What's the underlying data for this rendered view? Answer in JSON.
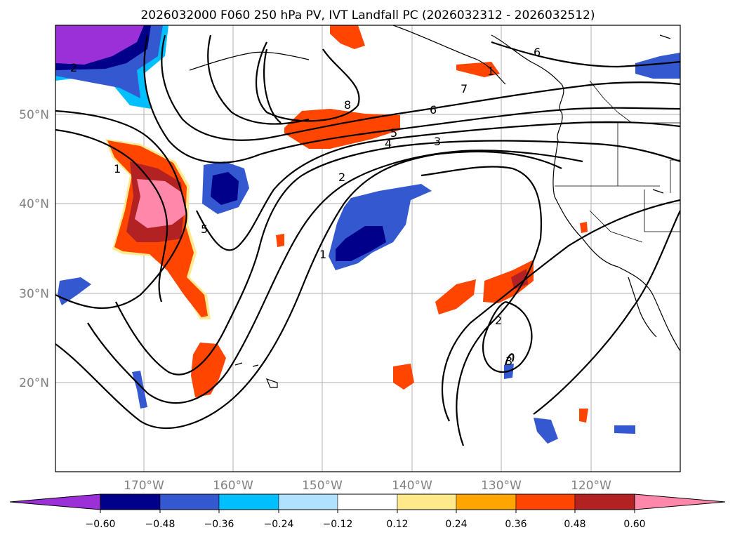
{
  "title": "2026032000 F060 250 hPa PV, IVT Landfall PC (2026032312 - 2026032512)",
  "map": {
    "lon_ticks": [
      "170°W",
      "160°W",
      "150°W",
      "140°W",
      "130°W",
      "120°W"
    ],
    "lat_ticks": [
      "50°N",
      "40°N",
      "30°N",
      "20°N"
    ]
  },
  "colorbar": {
    "ticks": [
      "−0.60",
      "−0.48",
      "−0.36",
      "−0.24",
      "−0.12",
      "0.12",
      "0.24",
      "0.36",
      "0.48",
      "0.60"
    ],
    "colors": [
      "#9b30d9",
      "#00008b",
      "#3358d0",
      "#00bfff",
      "#b0e2ff",
      "#ffffff",
      "#ffe98a",
      "#ffa500",
      "#ff4500",
      "#b22222",
      "#ff88aa"
    ]
  },
  "contour_labels": [
    "2",
    "1",
    "5",
    "1",
    "8",
    "5",
    "4",
    "3",
    "6",
    "7",
    "6",
    "2",
    "1",
    "2",
    "3"
  ]
}
